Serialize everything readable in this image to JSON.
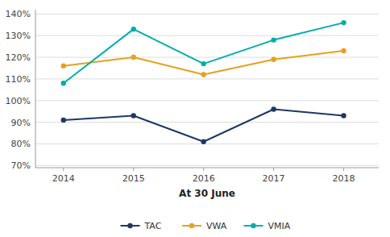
{
  "chart_data": {
    "type": "line",
    "x_label": "At 30 June",
    "x": [
      2014,
      2015,
      2016,
      2017,
      2018
    ],
    "xlim": [
      2013.6,
      2018.5
    ],
    "xticks": [
      2014,
      2015,
      2016,
      2017,
      2018
    ],
    "ylim": [
      0.69,
      1.42
    ],
    "yticks": [
      {
        "value": 0.7,
        "label": "70%"
      },
      {
        "value": 0.8,
        "label": "80%"
      },
      {
        "value": 0.9,
        "label": "90%"
      },
      {
        "value": 1.0,
        "label": "100%"
      },
      {
        "value": 1.1,
        "label": "110%"
      },
      {
        "value": 1.2,
        "label": "120%"
      },
      {
        "value": 1.3,
        "label": "130%"
      },
      {
        "value": 1.4,
        "label": "140%"
      }
    ],
    "grid": true,
    "legend": "bottom",
    "marker": "circle",
    "line_style": "solid",
    "series": [
      {
        "name": "TAC",
        "color": "#1f3864",
        "values": [
          0.91,
          0.93,
          0.81,
          0.96,
          0.93
        ]
      },
      {
        "name": "VWA",
        "color": "#e8a020",
        "values": [
          1.16,
          1.2,
          1.12,
          1.19,
          1.23
        ]
      },
      {
        "name": "VMIA",
        "color": "#00aeaa",
        "values": [
          1.08,
          1.33,
          1.17,
          1.28,
          1.36
        ]
      }
    ]
  }
}
